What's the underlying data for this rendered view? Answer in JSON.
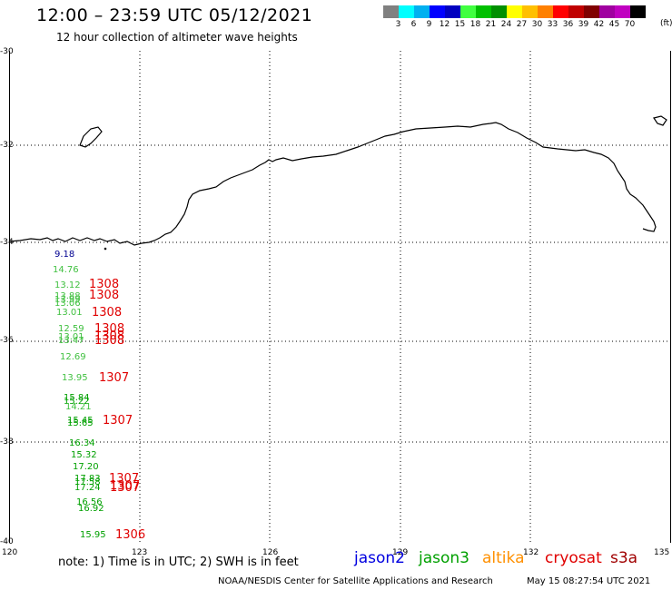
{
  "header": {
    "title": "12:00 – 23:59 UTC 05/12/2021",
    "subtitle": "12 hour collection of altimeter wave heights"
  },
  "color_scale": {
    "colors": [
      "#808080",
      "#00ffff",
      "#00b0f0",
      "#0000ff",
      "#0000c0",
      "#40ff40",
      "#00c000",
      "#009000",
      "#ffff00",
      "#ffc000",
      "#ff8000",
      "#ff0000",
      "#c00000",
      "#800000",
      "#a000a0",
      "#c000c0",
      "#000000"
    ],
    "labels": [
      "3",
      "6",
      "9",
      "12",
      "15",
      "18",
      "21",
      "24",
      "27",
      "30",
      "33",
      "36",
      "39",
      "42",
      "45",
      "70"
    ],
    "unit": "(ft)"
  },
  "axes": {
    "lon_labels": [
      "120",
      "123",
      "126",
      "129",
      "132",
      "135"
    ],
    "lat_labels": [
      "-30",
      "-32",
      "-34",
      "-36",
      "-38",
      "-40"
    ]
  },
  "wave_heights": [
    {
      "value": "9.18",
      "color": "#000090"
    },
    {
      "value": "14.76",
      "color": "#40c040"
    },
    {
      "value": "13.12",
      "color": "#40c040"
    },
    {
      "value": "13.88",
      "color": "#40c040"
    },
    {
      "value": "13.99",
      "color": "#40c040"
    },
    {
      "value": "13.06",
      "color": "#40c040"
    },
    {
      "value": "13.01",
      "color": "#40c040"
    },
    {
      "value": "12.59",
      "color": "#40c040"
    },
    {
      "value": "13.01",
      "color": "#40c040"
    },
    {
      "value": "13.47",
      "color": "#40c040"
    },
    {
      "value": "12.69",
      "color": "#40c040"
    },
    {
      "value": "13.95",
      "color": "#40c040"
    },
    {
      "value": "15.84",
      "color": "#00a000"
    },
    {
      "value": "15.22",
      "color": "#00a000"
    },
    {
      "value": "14.21",
      "color": "#40c040"
    },
    {
      "value": "15.45",
      "color": "#00a000"
    },
    {
      "value": "15.65",
      "color": "#00a000"
    },
    {
      "value": "16.34",
      "color": "#00a000"
    },
    {
      "value": "15.32",
      "color": "#00a000"
    },
    {
      "value": "17.20",
      "color": "#00a000"
    },
    {
      "value": "17.83",
      "color": "#00a000"
    },
    {
      "value": "17.58",
      "color": "#00a000"
    },
    {
      "value": "17.24",
      "color": "#00a000"
    },
    {
      "value": "16.56",
      "color": "#00a000"
    },
    {
      "value": "16.92",
      "color": "#00a000"
    },
    {
      "value": "15.95",
      "color": "#00a000"
    }
  ],
  "pass_times": [
    {
      "value": "1308",
      "color": "#e00000"
    },
    {
      "value": "1308",
      "color": "#e00000"
    },
    {
      "value": "1308",
      "color": "#e00000"
    },
    {
      "value": "1308",
      "color": "#e00000"
    },
    {
      "value": "1308",
      "color": "#e00000"
    },
    {
      "value": "1308",
      "color": "#e00000"
    },
    {
      "value": "1307",
      "color": "#e00000"
    },
    {
      "value": "1307",
      "color": "#e00000"
    },
    {
      "value": "1307",
      "color": "#e00000"
    },
    {
      "value": "1307",
      "color": "#e00000"
    },
    {
      "value": "1307",
      "color": "#e00000"
    },
    {
      "value": "1306",
      "color": "#e00000"
    }
  ],
  "footer": {
    "note": "note:  1) Time is in UTC;  2) SWH is in feet",
    "legend": [
      {
        "label": "jason2",
        "color": "#0000e0"
      },
      {
        "label": "jason3",
        "color": "#00a000"
      },
      {
        "label": "altika",
        "color": "#ff9000"
      },
      {
        "label": "cryosat",
        "color": "#e00000"
      },
      {
        "label": "s3a",
        "color": "#a00000"
      }
    ],
    "credit": "NOAA/NESDIS Center for Satellite Applications and Research",
    "timestamp": "May 15 08:27:54 UTC 2021"
  }
}
